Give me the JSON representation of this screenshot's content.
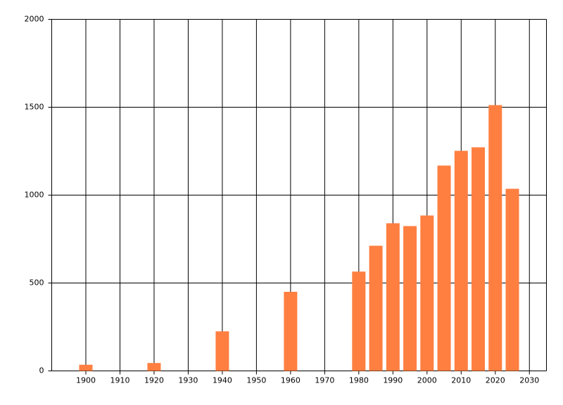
{
  "chart_data": {
    "type": "bar",
    "x": [
      1900,
      1920,
      1940,
      1960,
      1980,
      1985,
      1990,
      1995,
      2000,
      2005,
      2010,
      2015,
      2020,
      2025
    ],
    "values": [
      35,
      45,
      225,
      450,
      565,
      712,
      840,
      824,
      884,
      1168,
      1252,
      1272,
      1512,
      1036
    ],
    "color": "#ff7f41",
    "xlim": [
      1890,
      2035
    ],
    "xticks": [
      1900,
      1910,
      1920,
      1930,
      1940,
      1950,
      1960,
      1970,
      1980,
      1990,
      2000,
      2010,
      2020,
      2030
    ],
    "ylim": [
      0,
      2000
    ],
    "yticks": [
      0,
      500,
      1000,
      1500,
      2000
    ],
    "grid": true
  }
}
